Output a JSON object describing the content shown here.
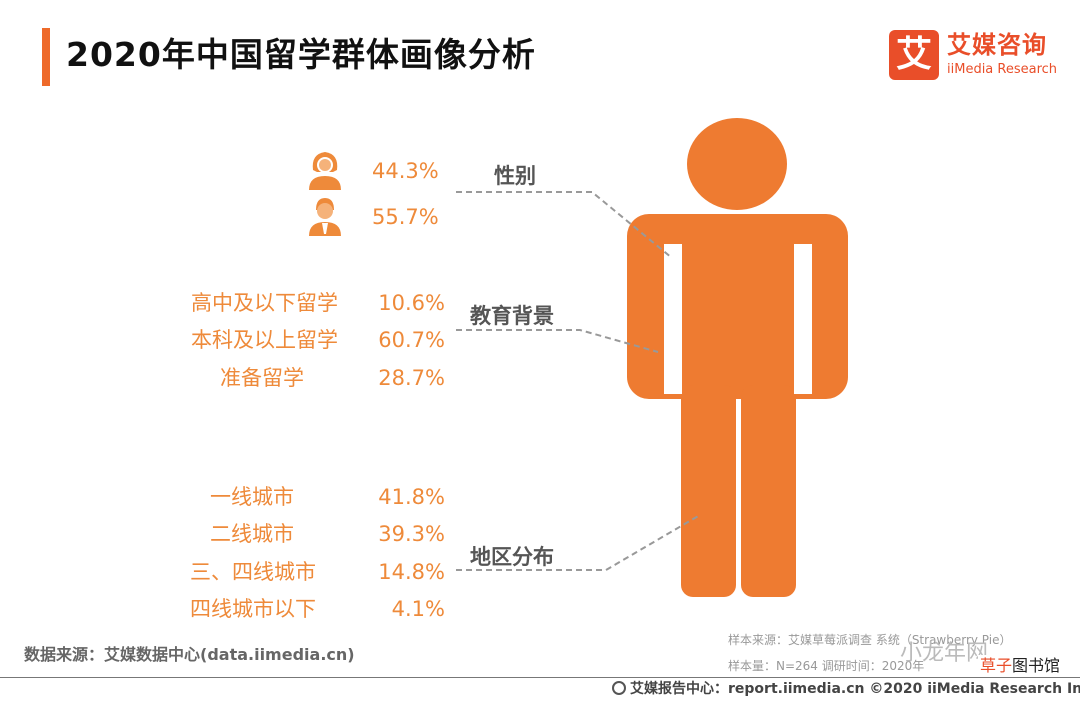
{
  "title": "2020年中国留学群体画像分析",
  "logo": {
    "mark": "艾",
    "name_cn": "艾媒咨询",
    "name_en": "iiMedia Research"
  },
  "chart_data": {
    "type": "table",
    "colors": {
      "accent": "#ee8a3a",
      "figure": "#ee7b31",
      "connector": "#999999"
    },
    "sections": [
      {
        "name": "性别",
        "items": [
          {
            "icon": "female-user-icon",
            "value": "44.3%"
          },
          {
            "icon": "male-user-icon",
            "value": "55.7%"
          }
        ]
      },
      {
        "name": "教育背景",
        "items": [
          {
            "label": "高中及以下留学",
            "value": "10.6%"
          },
          {
            "label": "本科及以上留学",
            "value": "60.7%"
          },
          {
            "label": "准备留学",
            "value": "28.7%"
          }
        ]
      },
      {
        "name": "地区分布",
        "items": [
          {
            "label": "一线城市",
            "value": "41.8%"
          },
          {
            "label": "二线城市",
            "value": "39.3%"
          },
          {
            "label": "三、四线城市",
            "value": "14.8%"
          },
          {
            "label": "四线城市以下",
            "value": "4.1%"
          }
        ]
      }
    ]
  },
  "footer": {
    "source": "数据来源：艾媒数据中心(data.iimedia.cn)",
    "sample_source": "样本来源：艾媒草莓派调查  系统（Strawberry Pie）",
    "sample_size": "样本量：N=264      调研时间：2020年",
    "watermark": "小龙年网",
    "corner_badge_a": "草子",
    "corner_badge_b": "图书馆",
    "center": "艾媒报告中心：report.iimedia.cn   ©2020  iiMedia Research  Inc"
  }
}
